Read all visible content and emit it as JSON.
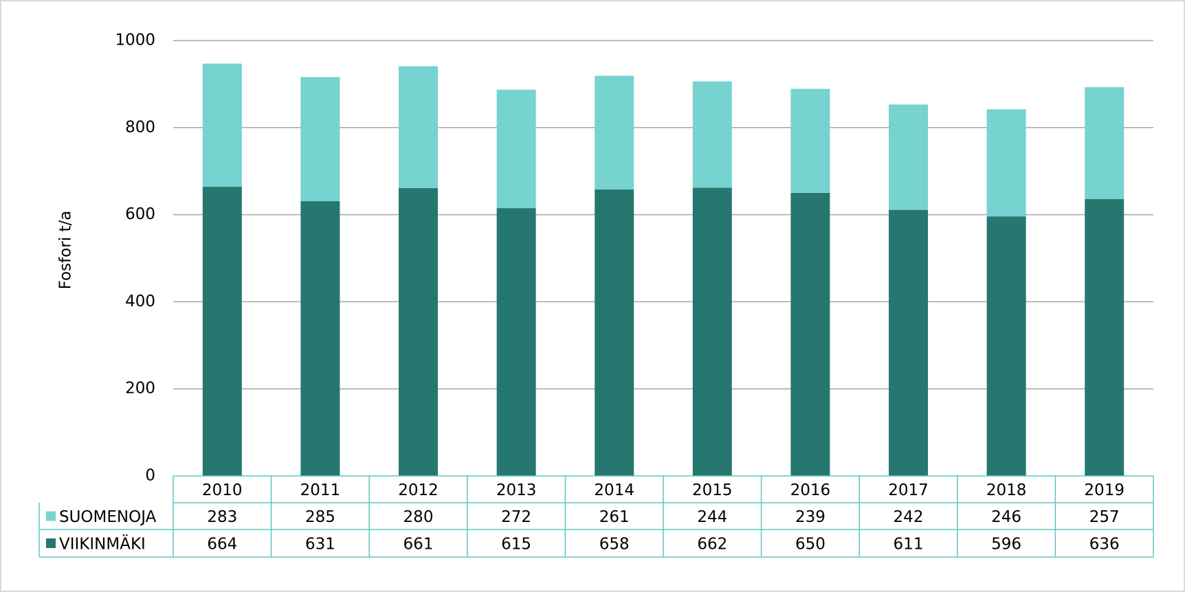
{
  "chart_data": {
    "type": "stacked_bar",
    "y_label": "Fosfori t/a",
    "categories": [
      "2010",
      "2011",
      "2012",
      "2013",
      "2014",
      "2015",
      "2016",
      "2017",
      "2018",
      "2019"
    ],
    "series": [
      {
        "name": "SUOMENOJA",
        "color": "#76d3cf",
        "values": [
          283,
          285,
          280,
          272,
          261,
          244,
          239,
          242,
          246,
          257
        ]
      },
      {
        "name": "VIIKINMÄKI",
        "color": "#26776f",
        "values": [
          664,
          631,
          661,
          615,
          658,
          662,
          650,
          611,
          596,
          636
        ]
      }
    ],
    "ylim": [
      0,
      1000
    ],
    "yticks": [
      0,
      200,
      400,
      600,
      800,
      1000
    ],
    "grid": true
  }
}
